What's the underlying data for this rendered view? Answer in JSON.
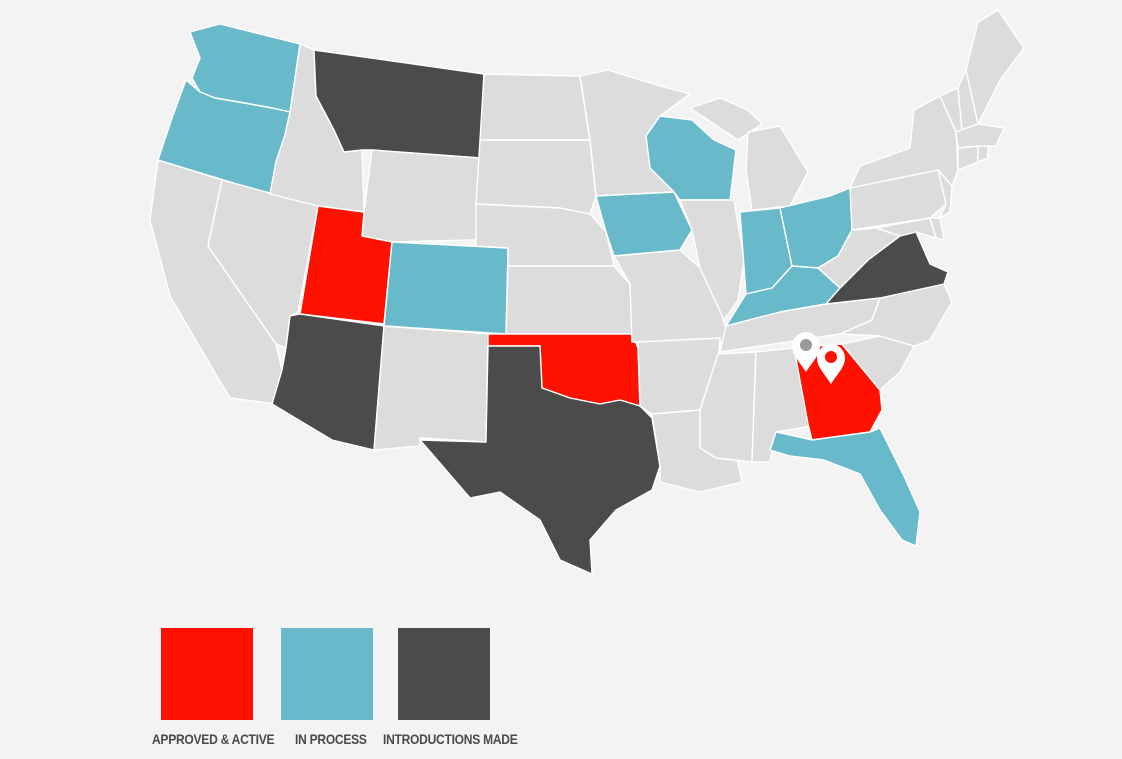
{
  "colors": {
    "background": "#f3f3f3",
    "default_state": "#dcdcdc",
    "approved_active": "#ff1100",
    "in_process": "#68b9ca",
    "introductions_made": "#4b4b4b",
    "state_border": "#ffffff",
    "marker": "#ffffff"
  },
  "map": {
    "status_by_state": {
      "approved_active": [
        "Utah",
        "Oklahoma",
        "Georgia"
      ],
      "in_process": [
        "Washington",
        "Oregon",
        "Colorado",
        "Iowa",
        "Wisconsin",
        "Indiana",
        "Ohio",
        "Kentucky",
        "Florida"
      ],
      "introductions_made": [
        "Montana",
        "Arizona",
        "Texas",
        "Virginia"
      ]
    },
    "markers": [
      {
        "state": "Georgia",
        "icon": "location-pin-icon",
        "variant": "gray-dot"
      },
      {
        "state": "Georgia",
        "icon": "location-pin-icon",
        "variant": "red-dot"
      }
    ]
  },
  "legend": {
    "items": [
      {
        "key": "approved_active",
        "label": "APPROVED & ACTIVE"
      },
      {
        "key": "in_process",
        "label": "IN PROCESS"
      },
      {
        "key": "introductions_made",
        "label": "INTRODUCTIONS MADE"
      }
    ]
  }
}
